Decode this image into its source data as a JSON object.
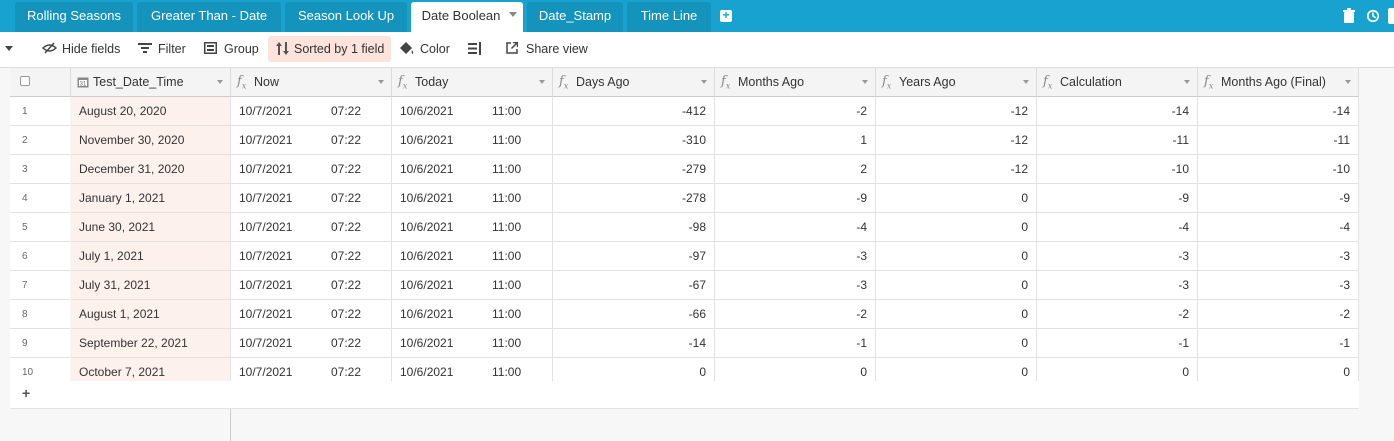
{
  "tabs": [
    {
      "label": "Rolling Seasons",
      "active": false
    },
    {
      "label": "Greater Than - Date",
      "active": false
    },
    {
      "label": "Season Look Up",
      "active": false
    },
    {
      "label": "Date Boolean",
      "active": true
    },
    {
      "label": "Date_Stamp",
      "active": false
    },
    {
      "label": "Time Line",
      "active": false
    }
  ],
  "toolbar": {
    "hide_fields": "Hide fields",
    "filter": "Filter",
    "group": "Group",
    "sorted": "Sorted by 1 field",
    "color": "Color",
    "share_view": "Share view"
  },
  "columns": [
    {
      "label": "Test_Date_Time",
      "type": "date"
    },
    {
      "label": "Now",
      "type": "formula"
    },
    {
      "label": "Today",
      "type": "formula"
    },
    {
      "label": "Days Ago",
      "type": "formula"
    },
    {
      "label": "Months Ago",
      "type": "formula"
    },
    {
      "label": "Years Ago",
      "type": "formula"
    },
    {
      "label": "Calculation",
      "type": "formula"
    },
    {
      "label": "Months Ago (Final)",
      "type": "formula"
    }
  ],
  "rows": [
    {
      "n": "1",
      "date": "August 20, 2020",
      "now_d": "10/7/2021",
      "now_t": "07:22",
      "today_d": "10/6/2021",
      "today_t": "11:00",
      "days": "-412",
      "months": "-2",
      "years": "-12",
      "calc": "-14",
      "final": "-14"
    },
    {
      "n": "2",
      "date": "November 30, 2020",
      "now_d": "10/7/2021",
      "now_t": "07:22",
      "today_d": "10/6/2021",
      "today_t": "11:00",
      "days": "-310",
      "months": "1",
      "years": "-12",
      "calc": "-11",
      "final": "-11"
    },
    {
      "n": "3",
      "date": "December 31, 2020",
      "now_d": "10/7/2021",
      "now_t": "07:22",
      "today_d": "10/6/2021",
      "today_t": "11:00",
      "days": "-279",
      "months": "2",
      "years": "-12",
      "calc": "-10",
      "final": "-10"
    },
    {
      "n": "4",
      "date": "January 1, 2021",
      "now_d": "10/7/2021",
      "now_t": "07:22",
      "today_d": "10/6/2021",
      "today_t": "11:00",
      "days": "-278",
      "months": "-9",
      "years": "0",
      "calc": "-9",
      "final": "-9"
    },
    {
      "n": "5",
      "date": "June 30, 2021",
      "now_d": "10/7/2021",
      "now_t": "07:22",
      "today_d": "10/6/2021",
      "today_t": "11:00",
      "days": "-98",
      "months": "-4",
      "years": "0",
      "calc": "-4",
      "final": "-4"
    },
    {
      "n": "6",
      "date": "July 1, 2021",
      "now_d": "10/7/2021",
      "now_t": "07:22",
      "today_d": "10/6/2021",
      "today_t": "11:00",
      "days": "-97",
      "months": "-3",
      "years": "0",
      "calc": "-3",
      "final": "-3"
    },
    {
      "n": "7",
      "date": "July 31, 2021",
      "now_d": "10/7/2021",
      "now_t": "07:22",
      "today_d": "10/6/2021",
      "today_t": "11:00",
      "days": "-67",
      "months": "-3",
      "years": "0",
      "calc": "-3",
      "final": "-3"
    },
    {
      "n": "8",
      "date": "August 1, 2021",
      "now_d": "10/7/2021",
      "now_t": "07:22",
      "today_d": "10/6/2021",
      "today_t": "11:00",
      "days": "-66",
      "months": "-2",
      "years": "0",
      "calc": "-2",
      "final": "-2"
    },
    {
      "n": "9",
      "date": "September 22, 2021",
      "now_d": "10/7/2021",
      "now_t": "07:22",
      "today_d": "10/6/2021",
      "today_t": "11:00",
      "days": "-14",
      "months": "-1",
      "years": "0",
      "calc": "-1",
      "final": "-1"
    },
    {
      "n": "10",
      "date": "October 7, 2021",
      "now_d": "10/7/2021",
      "now_t": "07:22",
      "today_d": "10/6/2021",
      "today_t": "11:00",
      "days": "0",
      "months": "0",
      "years": "0",
      "calc": "0",
      "final": "0"
    }
  ],
  "add_row": "+",
  "colors": {
    "tabbar": "#17a2cf",
    "sorted_bg": "#fde3dc",
    "date_cell_bg": "#fdf1ee"
  }
}
